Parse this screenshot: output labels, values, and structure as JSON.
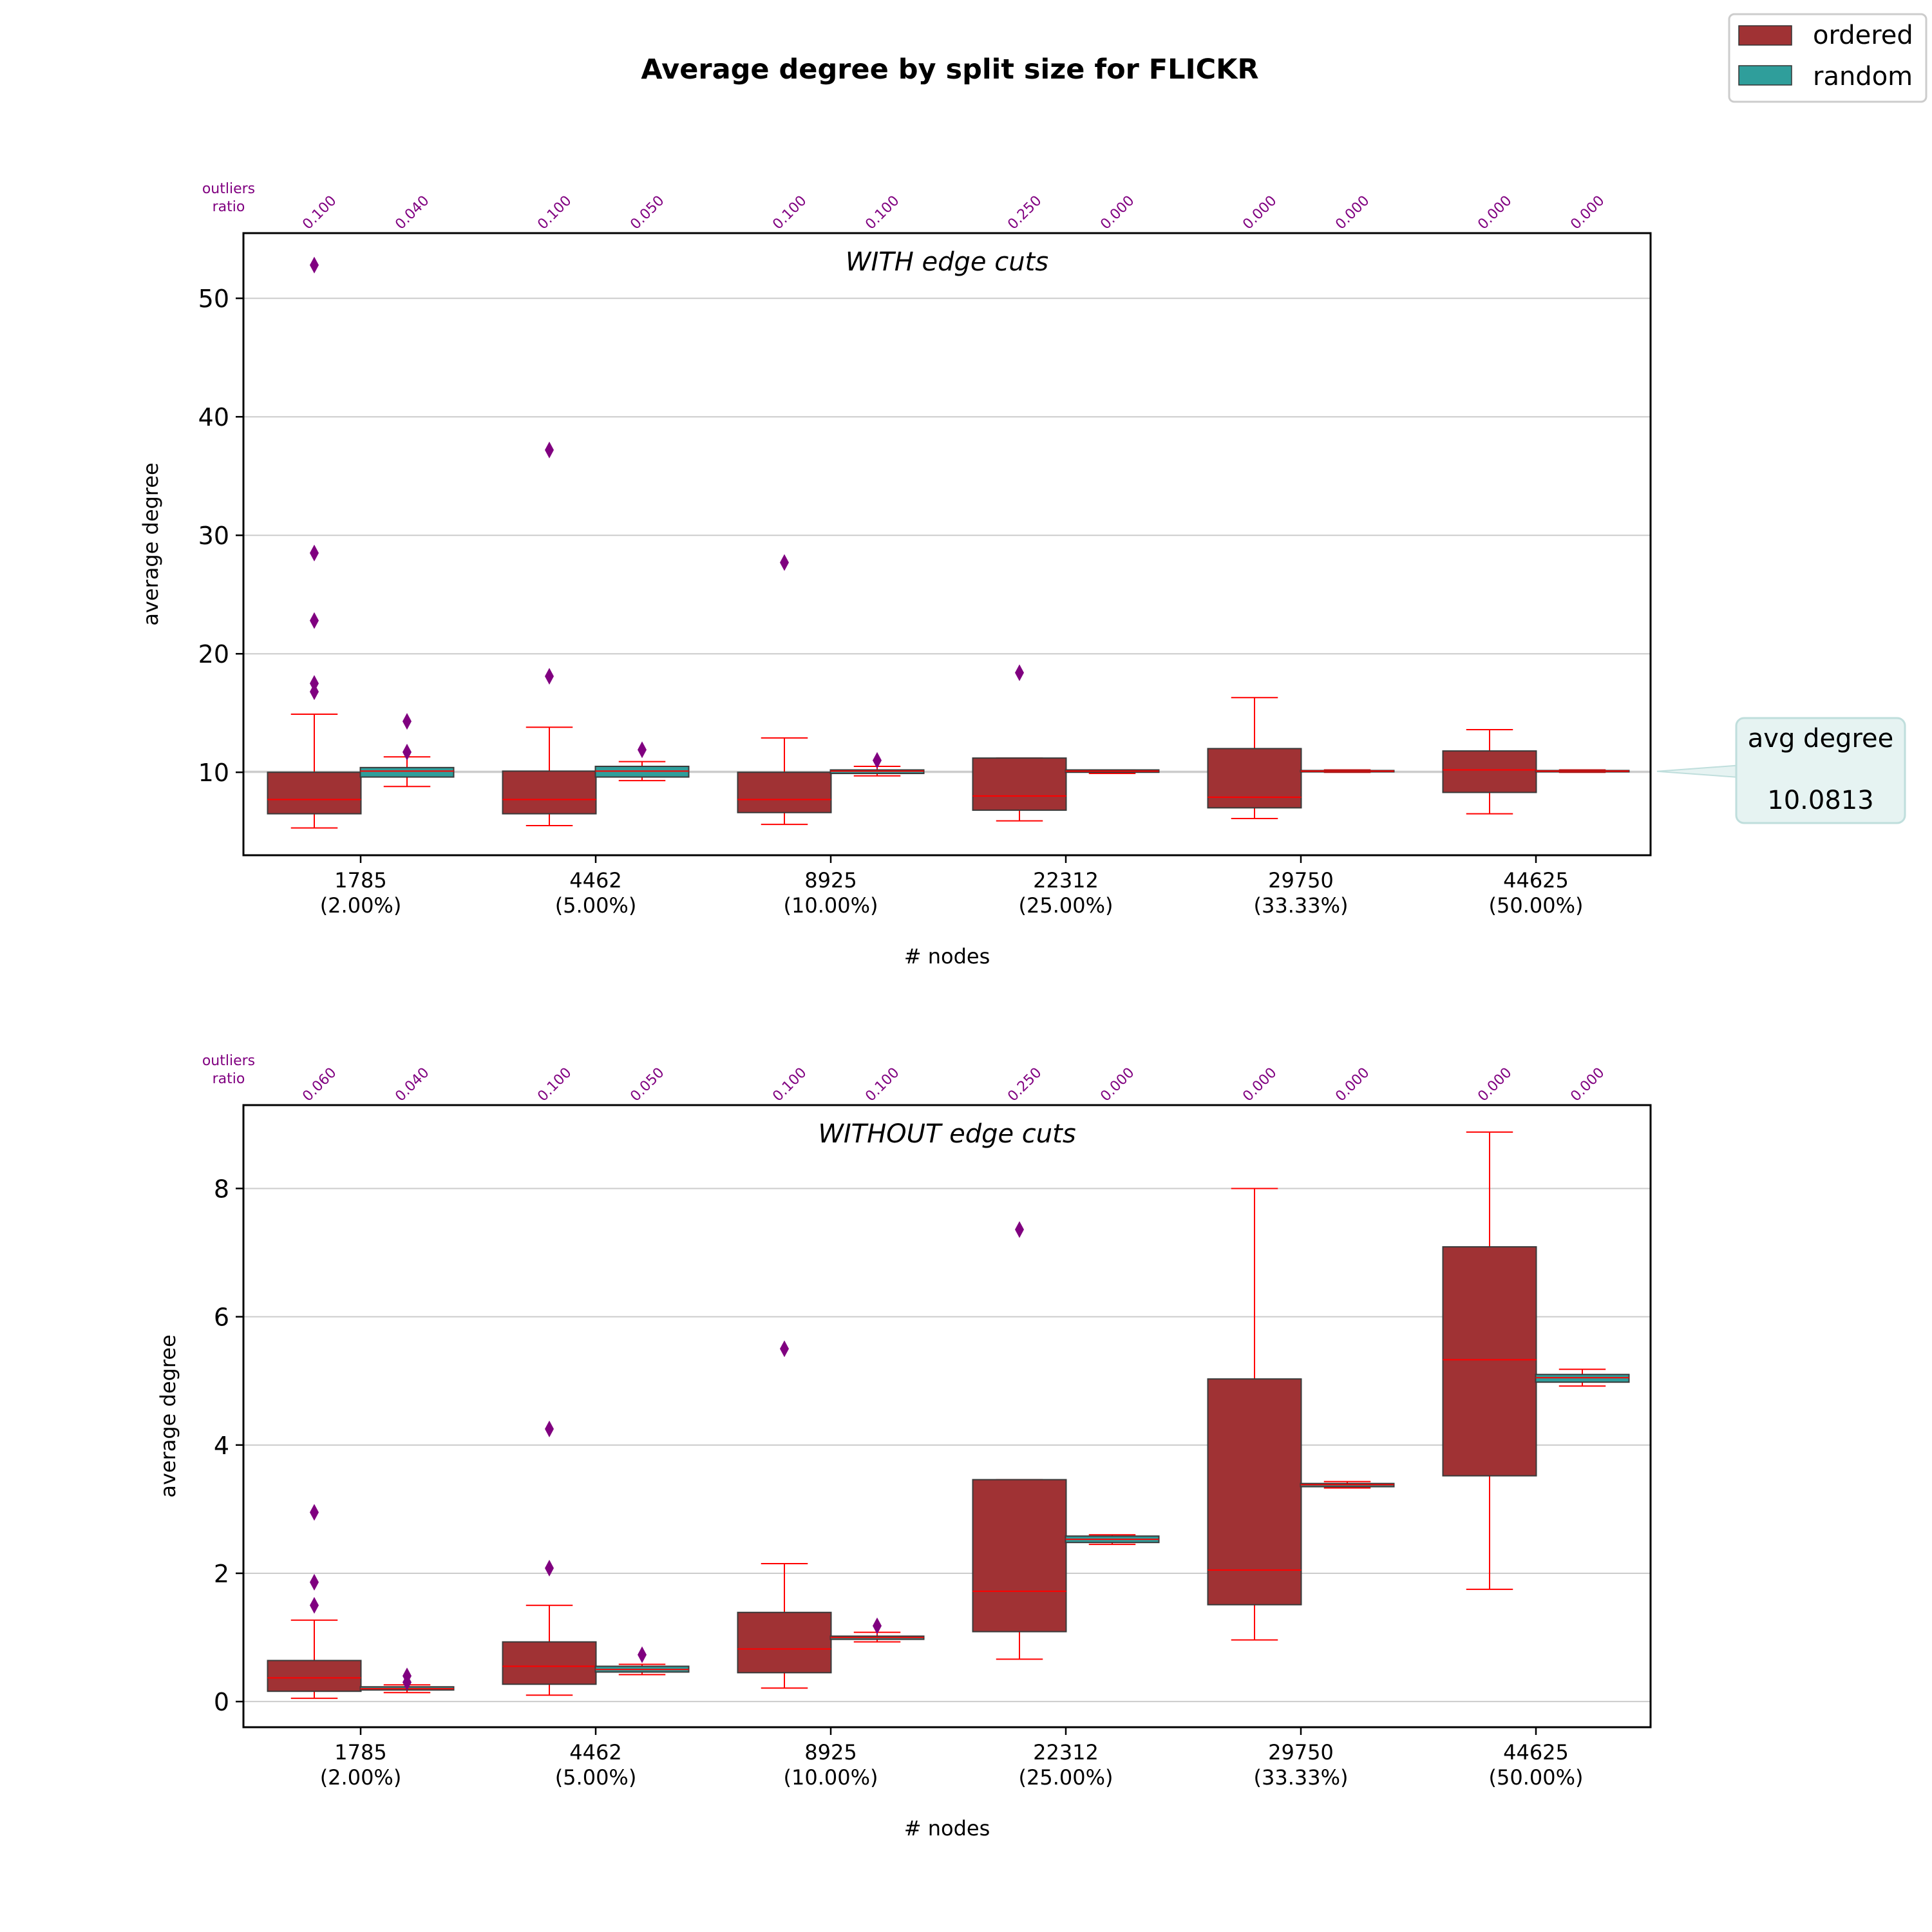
{
  "title": "Average degree by split size for FLICKR",
  "legend": {
    "position": "top-right",
    "items": [
      {
        "label": "ordered",
        "color": "#a03234"
      },
      {
        "label": "random",
        "color": "#2f9e9b"
      }
    ]
  },
  "annotation": {
    "label": "avg degree",
    "value": "10.0813",
    "line_value": 10.0813
  },
  "colors": {
    "ordered": "#a03234",
    "random": "#2f9e9b",
    "whisker": "#ff0000",
    "median": "#ff0000",
    "outlier": "#800080",
    "outlier_ratio_text": "#800080",
    "grid": "#cccccc"
  },
  "chart_data": [
    {
      "type": "box",
      "subtitle": "WITH edge cuts",
      "xlabel": "# nodes",
      "ylabel": "average degree",
      "ylim": [
        3,
        55.5
      ],
      "yticks": [
        10,
        20,
        30,
        40,
        50
      ],
      "grid": true,
      "outliers_ratio_label": [
        "outliers",
        "ratio"
      ],
      "categories": [
        [
          "1785",
          "(2.00%)"
        ],
        [
          "4462",
          "(5.00%)"
        ],
        [
          "8925",
          "(10.00%)"
        ],
        [
          "22312",
          "(25.00%)"
        ],
        [
          "29750",
          "(33.33%)"
        ],
        [
          "44625",
          "(50.00%)"
        ]
      ],
      "outlier_ratios": [
        "0.100",
        "0.040",
        "0.100",
        "0.050",
        "0.100",
        "0.100",
        "0.250",
        "0.000",
        "0.000",
        "0.000",
        "0.000",
        "0.000"
      ],
      "series": [
        {
          "name": "ordered",
          "boxes": [
            {
              "whislo": 5.3,
              "q1": 6.5,
              "med": 7.7,
              "q3": 10.0,
              "whishi": 14.9,
              "fliers": [
                16.8,
                17.5,
                22.8,
                28.5,
                52.8
              ]
            },
            {
              "whislo": 5.5,
              "q1": 6.5,
              "med": 7.7,
              "q3": 10.1,
              "whishi": 13.8,
              "fliers": [
                18.1,
                37.2
              ]
            },
            {
              "whislo": 5.6,
              "q1": 6.6,
              "med": 7.7,
              "q3": 10.0,
              "whishi": 12.9,
              "fliers": [
                27.7
              ]
            },
            {
              "whislo": 5.9,
              "q1": 6.8,
              "med": 8.0,
              "q3": 11.2,
              "whishi": 11.2,
              "fliers": [
                18.4
              ]
            },
            {
              "whislo": 6.1,
              "q1": 7.0,
              "med": 7.9,
              "q3": 12.0,
              "whishi": 16.3,
              "fliers": []
            },
            {
              "whislo": 6.5,
              "q1": 8.3,
              "med": 10.2,
              "q3": 11.8,
              "whishi": 13.6,
              "fliers": []
            }
          ]
        },
        {
          "name": "random",
          "boxes": [
            {
              "whislo": 8.8,
              "q1": 9.6,
              "med": 10.1,
              "q3": 10.4,
              "whishi": 11.3,
              "fliers": [
                11.7,
                14.3
              ]
            },
            {
              "whislo": 9.3,
              "q1": 9.6,
              "med": 10.1,
              "q3": 10.5,
              "whishi": 10.9,
              "fliers": [
                11.9
              ]
            },
            {
              "whislo": 9.7,
              "q1": 9.9,
              "med": 10.1,
              "q3": 10.2,
              "whishi": 10.5,
              "fliers": [
                11.0
              ]
            },
            {
              "whislo": 9.9,
              "q1": 10.0,
              "med": 10.1,
              "q3": 10.2,
              "whishi": 10.2,
              "fliers": []
            },
            {
              "whislo": 10.0,
              "q1": 10.05,
              "med": 10.1,
              "q3": 10.15,
              "whishi": 10.2,
              "fliers": []
            },
            {
              "whislo": 10.0,
              "q1": 10.05,
              "med": 10.1,
              "q3": 10.15,
              "whishi": 10.2,
              "fliers": []
            }
          ]
        }
      ]
    },
    {
      "type": "box",
      "subtitle": "WITHOUT edge cuts",
      "xlabel": "# nodes",
      "ylabel": "average degree",
      "ylim": [
        -0.4,
        9.3
      ],
      "yticks": [
        0,
        2,
        4,
        6,
        8
      ],
      "grid": true,
      "outliers_ratio_label": [
        "outliers",
        "ratio"
      ],
      "categories": [
        [
          "1785",
          "(2.00%)"
        ],
        [
          "4462",
          "(5.00%)"
        ],
        [
          "8925",
          "(10.00%)"
        ],
        [
          "22312",
          "(25.00%)"
        ],
        [
          "29750",
          "(33.33%)"
        ],
        [
          "44625",
          "(50.00%)"
        ]
      ],
      "outlier_ratios": [
        "0.060",
        "0.040",
        "0.100",
        "0.050",
        "0.100",
        "0.100",
        "0.250",
        "0.000",
        "0.000",
        "0.000",
        "0.000",
        "0.000"
      ],
      "series": [
        {
          "name": "ordered",
          "boxes": [
            {
              "whislo": 0.05,
              "q1": 0.16,
              "med": 0.37,
              "q3": 0.64,
              "whishi": 1.27,
              "fliers": [
                1.5,
                1.86,
                2.95
              ]
            },
            {
              "whislo": 0.1,
              "q1": 0.27,
              "med": 0.55,
              "q3": 0.93,
              "whishi": 1.5,
              "fliers": [
                2.08,
                4.25
              ]
            },
            {
              "whislo": 0.21,
              "q1": 0.45,
              "med": 0.82,
              "q3": 1.39,
              "whishi": 2.15,
              "fliers": [
                5.5
              ]
            },
            {
              "whislo": 0.66,
              "q1": 1.09,
              "med": 1.72,
              "q3": 3.46,
              "whishi": 3.46,
              "fliers": [
                7.36
              ]
            },
            {
              "whislo": 0.96,
              "q1": 1.51,
              "med": 2.05,
              "q3": 5.03,
              "whishi": 8.0,
              "fliers": []
            },
            {
              "whislo": 1.75,
              "q1": 3.52,
              "med": 5.33,
              "q3": 7.09,
              "whishi": 8.88,
              "fliers": []
            }
          ]
        },
        {
          "name": "random",
          "boxes": [
            {
              "whislo": 0.14,
              "q1": 0.18,
              "med": 0.2,
              "q3": 0.23,
              "whishi": 0.26,
              "fliers": [
                0.3,
                0.4
              ]
            },
            {
              "whislo": 0.42,
              "q1": 0.46,
              "med": 0.5,
              "q3": 0.55,
              "whishi": 0.58,
              "fliers": [
                0.73
              ]
            },
            {
              "whislo": 0.93,
              "q1": 0.97,
              "med": 1.0,
              "q3": 1.02,
              "whishi": 1.08,
              "fliers": [
                1.18
              ]
            },
            {
              "whislo": 2.45,
              "q1": 2.48,
              "med": 2.53,
              "q3": 2.58,
              "whishi": 2.6,
              "fliers": []
            },
            {
              "whislo": 3.33,
              "q1": 3.35,
              "med": 3.38,
              "q3": 3.4,
              "whishi": 3.43,
              "fliers": []
            },
            {
              "whislo": 4.92,
              "q1": 4.98,
              "med": 5.05,
              "q3": 5.1,
              "whishi": 5.18,
              "fliers": []
            }
          ]
        }
      ]
    }
  ]
}
